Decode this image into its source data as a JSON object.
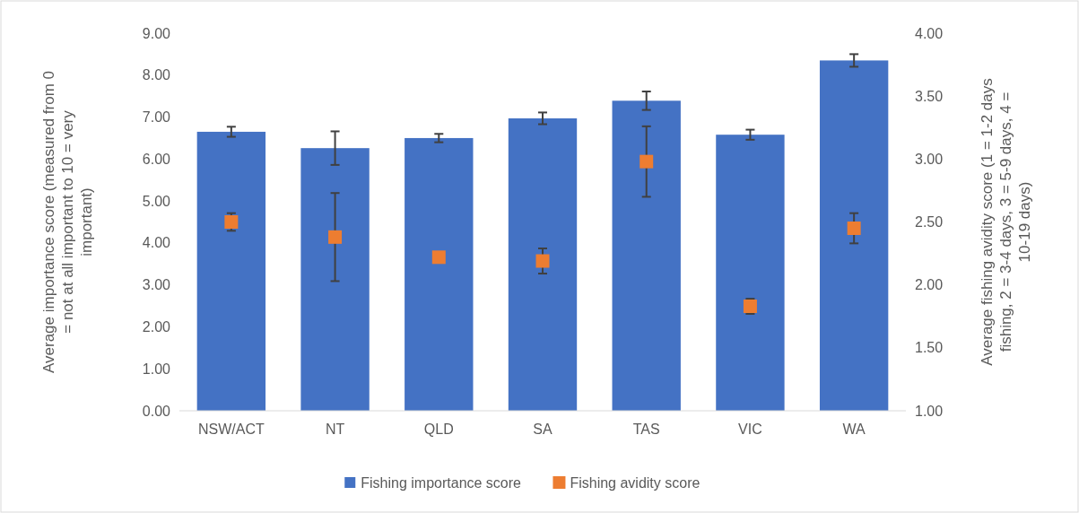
{
  "chart_data": {
    "type": "bar",
    "categories": [
      "NSW/ACT",
      "NT",
      "QLD",
      "SA",
      "TAS",
      "VIC",
      "WA"
    ],
    "ylabel": "Average importance score (measured from 0 = not at all important to 10 = very important)",
    "y2label": "Average fishing avidity score (1 = 1-2 days fishing, 2 = 3-4 days, 3 = 5-9 days, 4 = 10-19 days)",
    "ylim": [
      0,
      9
    ],
    "yticks": [
      {
        "value": 0,
        "label": "0.00"
      },
      {
        "value": 1,
        "label": "1.00"
      },
      {
        "value": 2,
        "label": "2.00"
      },
      {
        "value": 3,
        "label": "3.00"
      },
      {
        "value": 4,
        "label": "4.00"
      },
      {
        "value": 5,
        "label": "5.00"
      },
      {
        "value": 6,
        "label": "6.00"
      },
      {
        "value": 7,
        "label": "7.00"
      },
      {
        "value": 8,
        "label": "8.00"
      },
      {
        "value": 9,
        "label": "9.00"
      }
    ],
    "y2lim": [
      1,
      4
    ],
    "y2ticks": [
      {
        "value": 1,
        "label": "1.00"
      },
      {
        "value": 1.5,
        "label": "1.50"
      },
      {
        "value": 2,
        "label": "2.00"
      },
      {
        "value": 2.5,
        "label": "2.50"
      },
      {
        "value": 3,
        "label": "3.00"
      },
      {
        "value": 3.5,
        "label": "3.50"
      },
      {
        "value": 4,
        "label": "4.00"
      }
    ],
    "grid": false,
    "legend": "bottom",
    "series": [
      {
        "name": "Fishing importance score",
        "type": "bar",
        "color": "#4472c4",
        "values": [
          6.65,
          6.26,
          6.5,
          6.97,
          7.39,
          6.58,
          8.35
        ],
        "errors": [
          0.12,
          0.4,
          0.1,
          0.14,
          0.22,
          0.12,
          0.15
        ]
      },
      {
        "name": "Fishing avidity score",
        "type": "scatter",
        "axis": "y2",
        "marker": "square",
        "color": "#ed7d31",
        "values": [
          2.5,
          2.38,
          2.22,
          2.19,
          2.98,
          1.83,
          2.45
        ],
        "errors": [
          0.07,
          0.35,
          null,
          0.1,
          0.28,
          0.06,
          0.12
        ]
      }
    ]
  }
}
